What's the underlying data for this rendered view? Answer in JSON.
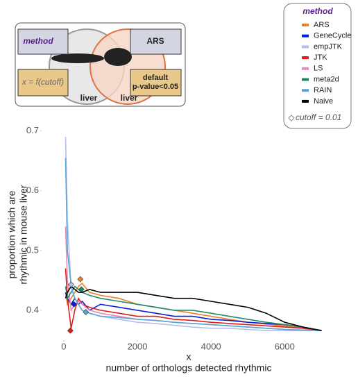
{
  "diagram": {
    "method": "method",
    "method_value": "ARS",
    "x_formula": "x = f(cutoff)",
    "default_lines": [
      "default",
      "p-value<0.05"
    ],
    "tissue_left": "liver",
    "tissue_right": "liver"
  },
  "chart_data": {
    "type": "line",
    "legend_title": "method",
    "cutoff_label": "cutoff = 0.01",
    "xlabel": [
      "x",
      "number of orthologs detected rhythmic"
    ],
    "ylabel": [
      "proportion which are",
      "rhythmic in mouse liver"
    ],
    "xlim": [
      -600,
      7500
    ],
    "ylim": [
      0.35,
      0.71
    ],
    "xticks": [
      0,
      2000,
      4000,
      6000
    ],
    "yticks": [
      0.4,
      0.5,
      0.6,
      0.7
    ],
    "grid": false,
    "x": [
      50,
      100,
      200,
      300,
      400,
      500,
      700,
      1000,
      1500,
      2000,
      2500,
      3000,
      3500,
      4000,
      4500,
      5000,
      5500,
      6000,
      6500,
      7000
    ],
    "series": [
      {
        "name": "ARS",
        "color": "#f07f20",
        "values": [
          0.43,
          0.41,
          0.42,
          0.43,
          0.44,
          0.445,
          0.43,
          0.425,
          0.42,
          0.41,
          0.405,
          0.4,
          0.395,
          0.39,
          0.385,
          0.38,
          0.377,
          0.374,
          0.37,
          0.366
        ],
        "cutoff": [
          450,
          0.452
        ]
      },
      {
        "name": "GeneCycle",
        "color": "#0a1ed6",
        "values": [
          0.43,
          0.42,
          0.41,
          0.42,
          0.41,
          0.415,
          0.4,
          0.41,
          0.405,
          0.4,
          0.395,
          0.39,
          0.39,
          0.385,
          0.383,
          0.38,
          0.378,
          0.376,
          0.372,
          0.366
        ],
        "cutoff": [
          280,
          0.41
        ]
      },
      {
        "name": "empJTK",
        "color": "#b3bde8",
        "values": [
          0.69,
          0.55,
          0.44,
          0.42,
          0.41,
          0.4,
          0.395,
          0.39,
          0.385,
          0.38,
          0.378,
          0.375,
          0.372,
          0.37,
          0.37,
          0.368,
          0.366,
          0.366,
          0.366,
          0.366
        ],
        "cutoff": [
          200,
          0.443
        ]
      },
      {
        "name": "JTK",
        "color": "#e01b1b",
        "values": [
          0.47,
          0.42,
          0.37,
          0.4,
          0.42,
          0.41,
          0.405,
          0.4,
          0.395,
          0.39,
          0.39,
          0.385,
          0.383,
          0.38,
          0.378,
          0.376,
          0.374,
          0.372,
          0.37,
          0.366
        ],
        "cutoff": [
          180,
          0.366
        ]
      },
      {
        "name": "LS",
        "color": "#e589b8",
        "values": [
          0.54,
          0.45,
          0.4,
          0.41,
          0.415,
          0.41,
          0.4,
          0.395,
          0.39,
          0.385,
          0.383,
          0.38,
          0.378,
          0.376,
          0.374,
          0.372,
          0.37,
          0.368,
          0.367,
          0.366
        ]
      },
      {
        "name": "meta2d",
        "color": "#1f8a70",
        "values": [
          0.44,
          0.42,
          0.43,
          0.44,
          0.435,
          0.43,
          0.425,
          0.42,
          0.415,
          0.41,
          0.405,
          0.4,
          0.4,
          0.395,
          0.39,
          0.385,
          0.38,
          0.376,
          0.372,
          0.366
        ],
        "cutoff": [
          480,
          0.435
        ]
      },
      {
        "name": "RAIN",
        "color": "#55a7d8",
        "values": [
          0.655,
          0.5,
          0.44,
          0.42,
          0.41,
          0.4,
          0.395,
          0.39,
          0.388,
          0.385,
          0.383,
          0.38,
          0.378,
          0.376,
          0.374,
          0.372,
          0.37,
          0.368,
          0.367,
          0.366
        ],
        "cutoff": [
          600,
          0.397
        ]
      },
      {
        "name": "Naive",
        "color": "#000000",
        "values": [
          0.42,
          0.43,
          0.44,
          0.435,
          0.43,
          0.43,
          0.435,
          0.43,
          0.43,
          0.43,
          0.425,
          0.42,
          0.42,
          0.415,
          0.41,
          0.405,
          0.395,
          0.38,
          0.372,
          0.366
        ]
      }
    ]
  }
}
